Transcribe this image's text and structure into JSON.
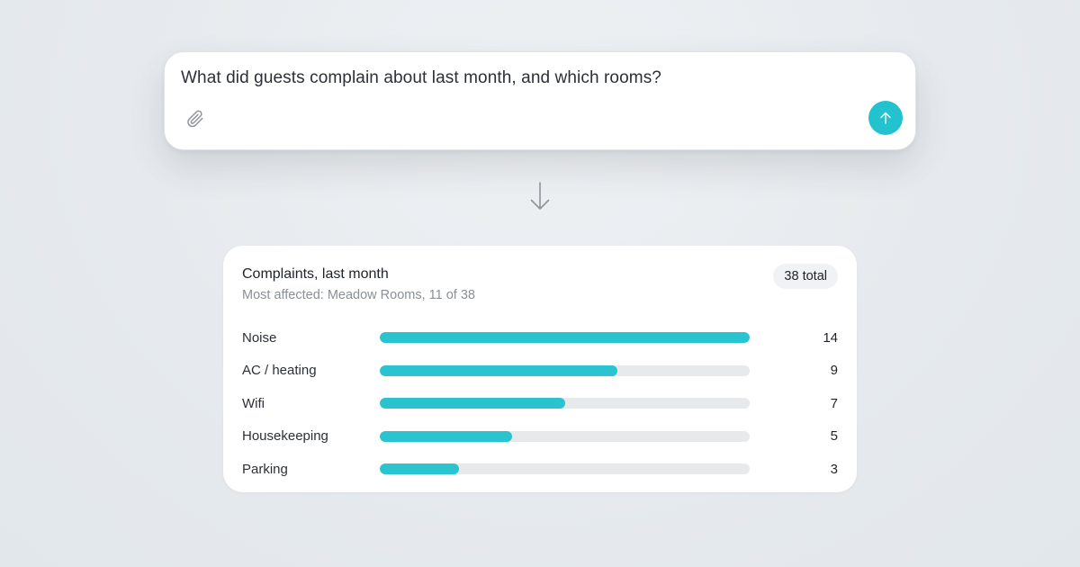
{
  "prompt": {
    "text": "What did guests complain about last month, and which rooms?",
    "attach_icon": "paperclip-icon",
    "send_icon": "arrow-up-icon"
  },
  "connector_icon": "arrow-down-icon",
  "result": {
    "title": "Complaints, last month",
    "subtitle": "Most affected: Meadow Rooms, 11 of 38",
    "total_badge": "38 total"
  },
  "chart_data": {
    "type": "bar",
    "orientation": "horizontal",
    "categories": [
      "Noise",
      "AC / heating",
      "Wifi",
      "Housekeeping",
      "Parking"
    ],
    "values": [
      14,
      9,
      7,
      5,
      3
    ],
    "xlim": [
      0,
      14
    ]
  },
  "colors": {
    "accent": "#22c2cf",
    "bar_fill": "#29c4d0",
    "bar_track": "#e8e9eb",
    "background": "#e6eaee"
  }
}
